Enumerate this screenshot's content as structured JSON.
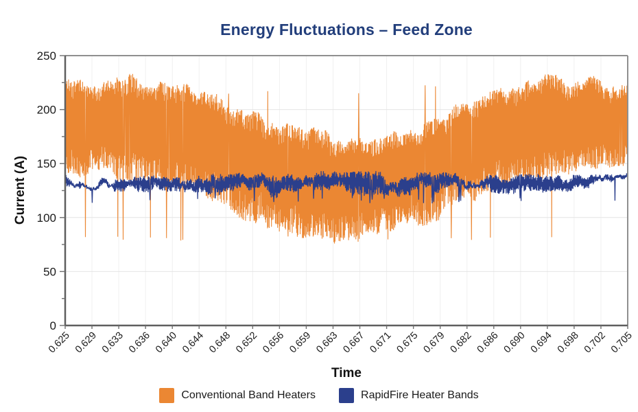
{
  "chart_data": {
    "type": "line",
    "title": "Energy Fluctuations – Feed Zone",
    "title_color": "#223E7B",
    "xlabel": "Time",
    "ylabel": "Current (A)",
    "ylim": [
      0,
      250
    ],
    "y_major_ticks": [
      0,
      50,
      100,
      150,
      200,
      250
    ],
    "y_minor_step": 25,
    "x_tick_labels": [
      "0.625",
      "0.629",
      "0.633",
      "0.636",
      "0.640",
      "0.644",
      "0.648",
      "0.652",
      "0.656",
      "0.659",
      "0.663",
      "0.667",
      "0.671",
      "0.675",
      "0.679",
      "0.682",
      "0.686",
      "0.690",
      "0.694",
      "0.698",
      "0.702",
      "0.705"
    ],
    "grid": true,
    "legend_position": "bottom",
    "series": [
      {
        "name": "Conventional Band Heaters",
        "color": "#EB8733",
        "pattern": "dense-noise-band",
        "upper_envelope": [
          228,
          229,
          230,
          230,
          228,
          220,
          207,
          197,
          188,
          182,
          177,
          176,
          180,
          187,
          197,
          209,
          221,
          227,
          230,
          230,
          228,
          221
        ],
        "lower_envelope": [
          141,
          138,
          135,
          132,
          127,
          118,
          106,
          96,
          88,
          82,
          79,
          78,
          83,
          91,
          101,
          113,
          126,
          134,
          139,
          141,
          141,
          140
        ],
        "spike_low": 78,
        "spike_high": 224
      },
      {
        "name": "RapidFire Heater Bands",
        "color": "#2B3F8C",
        "pattern": "dense-noise-band",
        "upper_envelope": [
          137,
          136,
          136,
          136,
          136,
          137,
          138,
          139,
          140,
          140,
          140,
          140,
          140,
          139,
          139,
          139,
          138,
          138,
          138,
          137,
          137,
          138
        ],
        "lower_envelope": [
          128,
          127,
          127,
          126,
          126,
          125,
          123,
          122,
          121,
          121,
          121,
          121,
          122,
          122,
          122,
          123,
          124,
          125,
          126,
          127,
          127,
          128
        ],
        "spike_low": 113,
        "spike_high": 141
      }
    ]
  }
}
